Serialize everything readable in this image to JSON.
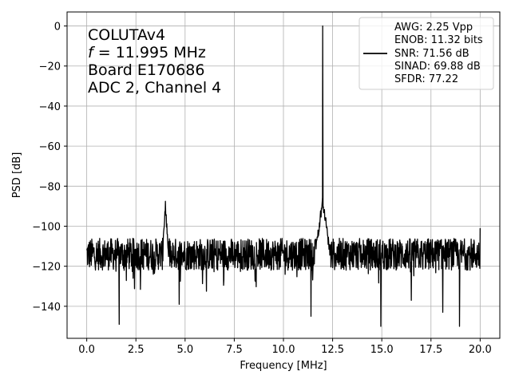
{
  "chart_data": {
    "type": "line",
    "xlabel": "Frequency [MHz]",
    "ylabel": "PSD [dB]",
    "xlim": [
      -1.0,
      21.0
    ],
    "ylim": [
      -156,
      7
    ],
    "xticks": [
      0.0,
      2.5,
      5.0,
      7.5,
      10.0,
      12.5,
      15.0,
      17.5,
      20.0
    ],
    "xtick_labels": [
      "0.0",
      "2.5",
      "5.0",
      "7.5",
      "10.0",
      "12.5",
      "15.0",
      "17.5",
      "20.0"
    ],
    "yticks": [
      0,
      -20,
      -40,
      -60,
      -80,
      -100,
      -120,
      -140
    ],
    "ytick_labels": [
      "0",
      "−20",
      "−40",
      "−60",
      "−80",
      "−100",
      "−120",
      "−140"
    ],
    "grid": true,
    "line_color": "#000000",
    "annotation": {
      "line1": "COLUTAv4",
      "line2_var": "f",
      "line2_rest": " = 11.995 MHz",
      "line3": "Board E170686",
      "line4": "ADC 2, Channel 4"
    },
    "legend": {
      "placement": "top-right",
      "lines": [
        "AWG: 2.25 Vpp",
        "ENOB: 11.32 bits",
        "SNR: 71.56 dB",
        "SINAD: 69.88 dB",
        "SFDR: 77.22"
      ]
    },
    "series": [
      {
        "noise_floor_db": -114,
        "noise_spread_db": 8,
        "x_start": 0.0,
        "x_end": 20.0,
        "peaks": [
          {
            "x": 11.995,
            "y": 0,
            "type": "fundamental"
          },
          {
            "x": 11.97,
            "y": -87,
            "type": "shoulder"
          },
          {
            "x": 4.0,
            "y": -90,
            "type": "spur"
          },
          {
            "x": 19.98,
            "y": -101,
            "type": "spur"
          },
          {
            "x": 12.0,
            "y": -145,
            "type": "min"
          }
        ],
        "minima": [
          {
            "x": 1.65,
            "y": -149
          },
          {
            "x": 4.7,
            "y": -139
          },
          {
            "x": 11.4,
            "y": -145
          },
          {
            "x": 14.95,
            "y": -150
          },
          {
            "x": 16.5,
            "y": -137
          },
          {
            "x": 18.1,
            "y": -143
          },
          {
            "x": 18.95,
            "y": -150
          }
        ]
      }
    ]
  }
}
